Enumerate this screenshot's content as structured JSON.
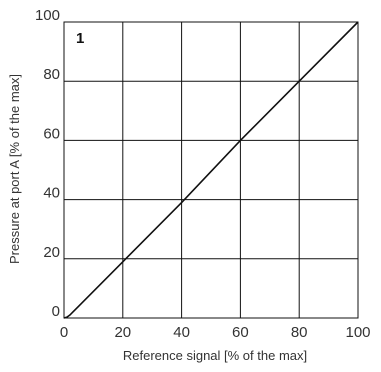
{
  "chart_data": {
    "type": "line",
    "panel_label": "1",
    "xlabel": "Reference signal [% of the max]",
    "ylabel": "Pressure at port A [% of the max]",
    "xlim": [
      0,
      100
    ],
    "ylim": [
      0,
      100
    ],
    "x_ticks": [
      0,
      20,
      40,
      60,
      80,
      100
    ],
    "y_ticks": [
      0,
      20,
      40,
      60,
      80,
      100
    ],
    "grid": true,
    "series": [
      {
        "x": [
          0,
          1,
          2,
          3,
          5,
          20,
          40,
          60,
          80,
          100
        ],
        "y": [
          0,
          0.3,
          1,
          2,
          4,
          19,
          39,
          60,
          80,
          100
        ]
      }
    ],
    "colors": {
      "line": "#111111",
      "grid": "#111111",
      "text": "#333333"
    }
  }
}
